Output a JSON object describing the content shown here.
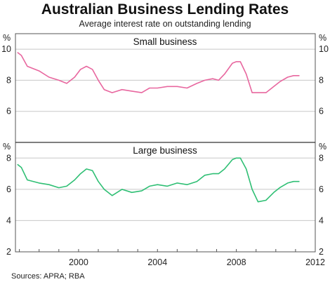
{
  "title": "Australian Business Lending Rates",
  "subtitle": "Average interest rate on outstanding lending",
  "source": "Sources: APRA; RBA",
  "x_ticks": [
    "2000",
    "2004",
    "2008",
    "2012"
  ],
  "colors": {
    "small": "#e8679f",
    "large": "#2fbf74",
    "axis": "#555555",
    "grid": "#c8c8c8"
  },
  "chart_data": [
    {
      "type": "line",
      "panel_title": "Small business",
      "unit": "%",
      "ylim": [
        4,
        11
      ],
      "yticks": [
        6,
        8,
        10
      ],
      "xlim": [
        1996.8,
        2012
      ],
      "grid": true,
      "series": [
        {
          "color": "#e8679f",
          "x": [
            1996.9,
            1997.1,
            1997.4,
            1998.0,
            1998.5,
            1999.0,
            1999.4,
            1999.8,
            2000.1,
            2000.4,
            2000.7,
            2001.0,
            2001.3,
            2001.7,
            2002.2,
            2002.7,
            2003.2,
            2003.6,
            2004.0,
            2004.5,
            2005.0,
            2005.5,
            2006.0,
            2006.4,
            2006.8,
            2007.1,
            2007.4,
            2007.8,
            2008.0,
            2008.2,
            2008.5,
            2008.8,
            2009.1,
            2009.5,
            2009.9,
            2010.2,
            2010.6,
            2010.9,
            2011.2
          ],
          "y": [
            9.8,
            9.6,
            8.9,
            8.6,
            8.2,
            8.0,
            7.8,
            8.2,
            8.7,
            8.9,
            8.7,
            8.0,
            7.4,
            7.2,
            7.4,
            7.3,
            7.2,
            7.5,
            7.5,
            7.6,
            7.6,
            7.5,
            7.8,
            8.0,
            8.1,
            8.0,
            8.4,
            9.1,
            9.2,
            9.2,
            8.4,
            7.2,
            7.2,
            7.2,
            7.6,
            7.9,
            8.2,
            8.3,
            8.3
          ]
        }
      ]
    },
    {
      "type": "line",
      "panel_title": "Large business",
      "unit": "%",
      "ylim": [
        2,
        9
      ],
      "yticks": [
        2,
        4,
        6,
        8
      ],
      "xlim": [
        1996.8,
        2012
      ],
      "grid": true,
      "series": [
        {
          "color": "#2fbf74",
          "x": [
            1996.9,
            1997.1,
            1997.4,
            1998.0,
            1998.5,
            1999.0,
            1999.4,
            1999.8,
            2000.1,
            2000.4,
            2000.7,
            2001.0,
            2001.3,
            2001.7,
            2002.2,
            2002.7,
            2003.2,
            2003.6,
            2004.0,
            2004.5,
            2005.0,
            2005.5,
            2006.0,
            2006.4,
            2006.8,
            2007.1,
            2007.4,
            2007.8,
            2008.0,
            2008.2,
            2008.5,
            2008.8,
            2009.1,
            2009.5,
            2009.9,
            2010.2,
            2010.6,
            2010.9,
            2011.2
          ],
          "y": [
            7.6,
            7.4,
            6.6,
            6.4,
            6.3,
            6.1,
            6.2,
            6.6,
            7.0,
            7.3,
            7.2,
            6.5,
            6.0,
            5.6,
            6.0,
            5.8,
            5.9,
            6.2,
            6.3,
            6.2,
            6.4,
            6.3,
            6.5,
            6.9,
            7.0,
            7.0,
            7.3,
            7.9,
            8.0,
            8.0,
            7.3,
            6.0,
            5.2,
            5.3,
            5.8,
            6.1,
            6.4,
            6.5,
            6.5
          ]
        }
      ]
    }
  ]
}
